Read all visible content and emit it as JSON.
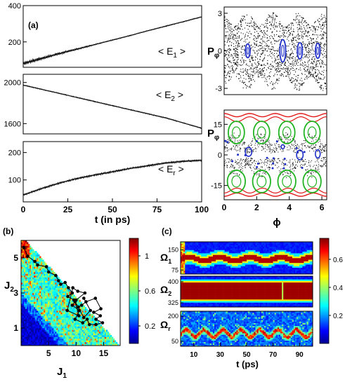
{
  "chart_data": [
    {
      "panel": "a-top",
      "type": "line",
      "panel_label": "(a)",
      "annotation": "< E",
      "annotation_sub": "1",
      "annotation_end": " >",
      "xlim": [
        0,
        100
      ],
      "ylim": [
        60,
        400
      ],
      "yticks": [
        200,
        400
      ],
      "x": [
        0,
        10,
        20,
        30,
        40,
        50,
        60,
        70,
        80,
        90,
        100
      ],
      "y": [
        80,
        108,
        135,
        160,
        185,
        210,
        235,
        262,
        287,
        312,
        338
      ],
      "color": "#000000"
    },
    {
      "panel": "a-mid",
      "type": "line",
      "annotation": "< E",
      "annotation_sub": "2",
      "annotation_end": " >",
      "xlim": [
        0,
        100
      ],
      "ylim": [
        1500,
        2080
      ],
      "yticks": [
        1600,
        2000
      ],
      "x": [
        0,
        10,
        20,
        30,
        40,
        50,
        60,
        70,
        80,
        90,
        100
      ],
      "y": [
        1975,
        1935,
        1895,
        1855,
        1815,
        1775,
        1735,
        1695,
        1655,
        1605,
        1555
      ],
      "color": "#000000"
    },
    {
      "panel": "a-bot",
      "type": "line",
      "annotation": "< E",
      "annotation_sub": "r",
      "annotation_end": " >",
      "xlim": [
        0,
        100
      ],
      "ylim": [
        20,
        240
      ],
      "yticks": [
        100,
        200
      ],
      "xticks": [
        0,
        25,
        50,
        75,
        100
      ],
      "xlabel": "t (in ps)",
      "x": [
        0,
        10,
        20,
        30,
        40,
        50,
        60,
        70,
        80,
        90,
        100
      ],
      "y": [
        45,
        68,
        88,
        105,
        118,
        130,
        142,
        152,
        162,
        168,
        172
      ],
      "color": "#000000"
    },
    {
      "panel": "phase-top",
      "type": "scatter",
      "ylabel": "P",
      "ylabel_sub": "φ",
      "xlim": [
        0,
        6.3
      ],
      "ylim": [
        -3.5,
        3.5
      ],
      "yticks": [
        -3,
        0,
        3
      ],
      "islands": [
        {
          "phi": 1.45,
          "p": 0.0,
          "rx": 0.12,
          "ry": 0.55,
          "color": "#1f2fc8"
        },
        {
          "phi": 3.6,
          "p": 0.0,
          "rx": 0.15,
          "ry": 0.9,
          "color": "#1f2fc8"
        },
        {
          "phi": 4.65,
          "p": 0.0,
          "rx": 0.13,
          "ry": 0.65,
          "color": "#1f2fc8"
        },
        {
          "phi": 5.75,
          "p": 0.0,
          "rx": 0.12,
          "ry": 0.6,
          "color": "#1f2fc8"
        }
      ]
    },
    {
      "panel": "phase-bot",
      "type": "scatter",
      "ylabel": "P",
      "ylabel_sub": "φ",
      "xlabel": "ϕ",
      "xlim": [
        0,
        6.3
      ],
      "ylim": [
        -22,
        22
      ],
      "yticks": [
        -15,
        0,
        15
      ],
      "xticks": [
        0,
        2,
        4,
        6
      ],
      "colors": {
        "outer": "#e01818",
        "resonance": "#22b422",
        "inner": "#1f2fc8",
        "chaos": "#000000"
      }
    },
    {
      "panel": "b",
      "type": "heatmap",
      "panel_label": "(b)",
      "xlabel": "J",
      "xlabel_sub": "1",
      "ylabel": "J",
      "ylabel_sub": "2",
      "xlim": [
        0,
        18
      ],
      "ylim": [
        0,
        6
      ],
      "xticks": [
        5,
        10,
        15
      ],
      "yticks": [
        1,
        3,
        5
      ],
      "colorbar_ticks": [
        0.2,
        0.6,
        1
      ],
      "trajectory": [
        [
          0.5,
          5.6
        ],
        [
          1.2,
          5.1
        ],
        [
          2.5,
          4.8
        ],
        [
          3.0,
          4.6
        ],
        [
          4.6,
          4.5
        ],
        [
          5.0,
          4.2
        ],
        [
          6.3,
          4.0
        ],
        [
          6.8,
          3.7
        ],
        [
          7.2,
          3.5
        ],
        [
          8.0,
          3.6
        ],
        [
          8.6,
          3.3
        ],
        [
          9.3,
          3.0
        ],
        [
          8.5,
          2.8
        ],
        [
          9.6,
          2.6
        ],
        [
          10.4,
          2.2
        ],
        [
          11.0,
          2.3
        ],
        [
          11.8,
          2.5
        ],
        [
          13.5,
          2.7
        ],
        [
          14.5,
          2.1
        ],
        [
          13.2,
          1.9
        ],
        [
          14.4,
          1.7
        ],
        [
          13.6,
          1.5
        ],
        [
          14.8,
          1.3
        ],
        [
          13.6,
          1.2
        ],
        [
          12.4,
          1.2
        ],
        [
          12.0,
          1.5
        ],
        [
          11.2,
          1.3
        ],
        [
          9.8,
          1.5
        ],
        [
          10.6,
          2.0
        ],
        [
          9.3,
          2.3
        ],
        [
          10.0,
          2.6
        ],
        [
          11.6,
          3.0
        ],
        [
          10.3,
          3.1
        ],
        [
          9.4,
          3.3
        ],
        [
          8.4,
          2.0
        ],
        [
          10.5,
          1.7
        ],
        [
          9.8,
          2.5
        ],
        [
          11.4,
          1.6
        ],
        [
          12.6,
          2.0
        ],
        [
          11.4,
          2.7
        ]
      ]
    },
    {
      "panel": "c",
      "type": "heatmap",
      "panel_label": "(c)",
      "xlabel": "t (ps)",
      "xlim": [
        0,
        100
      ],
      "xticks": [
        10,
        30,
        50,
        70,
        90
      ],
      "colorbar_ticks": [
        0.2,
        0.4,
        0.6
      ],
      "rows": [
        {
          "name": "Ω",
          "sub": "1",
          "yticks": [
            75,
            150
          ],
          "ylim": [
            60,
            180
          ]
        },
        {
          "name": "Ω",
          "sub": "2",
          "yticks": [
            325,
            400
          ],
          "ylim": [
            310,
            420
          ]
        },
        {
          "name": "Ω",
          "sub": "r",
          "yticks": [
            50,
            200
          ],
          "ylim": [
            20,
            230
          ]
        }
      ]
    }
  ]
}
